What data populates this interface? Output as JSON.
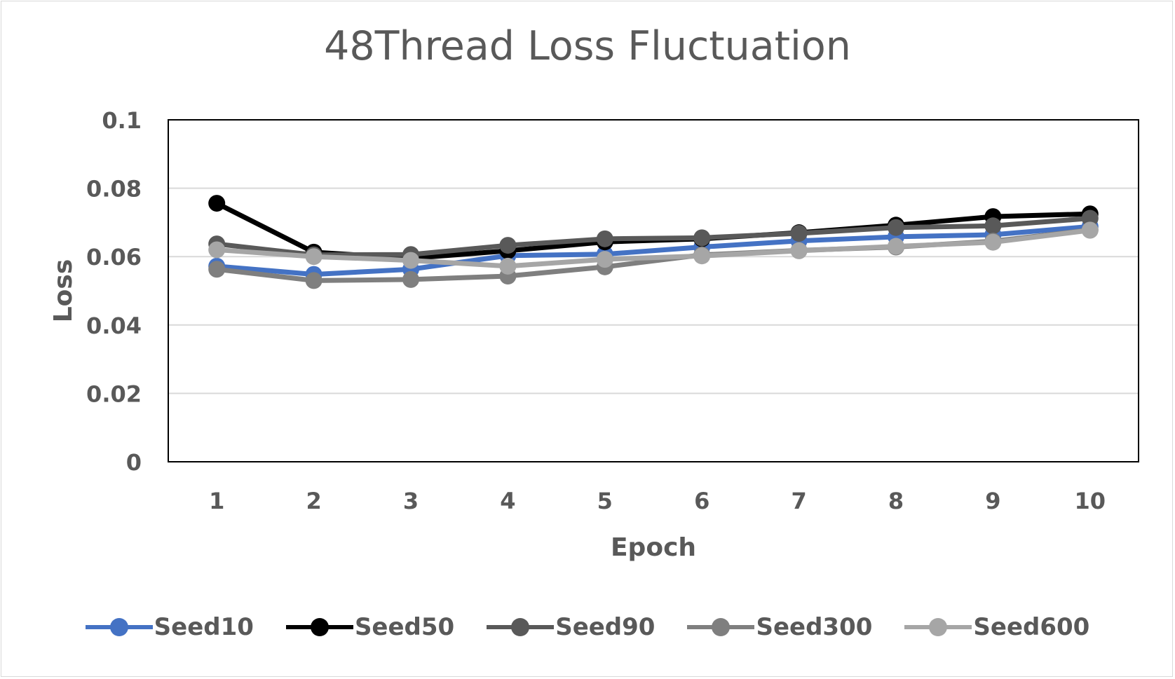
{
  "chart_data": {
    "type": "line",
    "title": "48Thread Loss Fluctuation",
    "xlabel": "Epoch",
    "ylabel": "Loss",
    "categories": [
      "1",
      "2",
      "3",
      "4",
      "5",
      "6",
      "7",
      "8",
      "9",
      "10"
    ],
    "ylim": [
      0,
      0.1
    ],
    "yticks": [
      "0",
      "0.02",
      "0.04",
      "0.06",
      "0.08",
      "0.1"
    ],
    "grid": true,
    "legend_position": "bottom",
    "series": [
      {
        "name": "Seed10",
        "color": "#4472c4",
        "values": [
          0.0572,
          0.0548,
          0.0563,
          0.0603,
          0.0607,
          0.0628,
          0.0646,
          0.0658,
          0.0664,
          0.0688
        ]
      },
      {
        "name": "Seed50",
        "color": "#000000",
        "values": [
          0.0756,
          0.0613,
          0.0595,
          0.0617,
          0.0643,
          0.0652,
          0.067,
          0.0692,
          0.0717,
          0.0725
        ]
      },
      {
        "name": "Seed90",
        "color": "#595959",
        "values": [
          0.0637,
          0.0605,
          0.0606,
          0.0633,
          0.0652,
          0.0655,
          0.0668,
          0.0685,
          0.069,
          0.0712
        ]
      },
      {
        "name": "Seed300",
        "color": "#7f7f7f",
        "values": [
          0.0563,
          0.053,
          0.0533,
          0.0543,
          0.057,
          0.0605,
          0.0618,
          0.0628,
          0.0645,
          0.0678
        ]
      },
      {
        "name": "Seed600",
        "color": "#a6a6a6",
        "values": [
          0.062,
          0.06,
          0.0589,
          0.0572,
          0.0592,
          0.0602,
          0.0617,
          0.063,
          0.0642,
          0.0677
        ]
      }
    ]
  }
}
